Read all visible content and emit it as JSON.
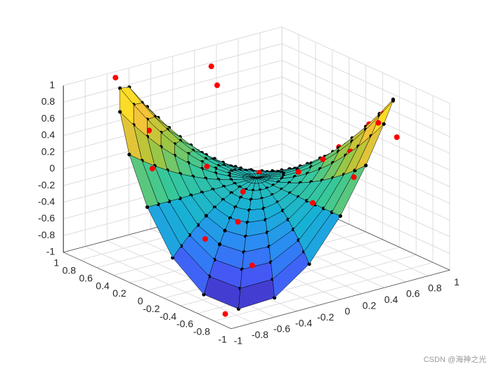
{
  "chart_data": {
    "type": "surface3d",
    "view": [
      -37.5,
      30
    ],
    "xlim": [
      -1,
      1
    ],
    "ylim": [
      -1,
      1
    ],
    "zlim": [
      -1,
      1
    ],
    "xticks": [
      -1,
      -0.8,
      -0.6,
      -0.4,
      -0.2,
      0,
      0.2,
      0.4,
      0.6,
      0.8,
      1
    ],
    "yticks": [
      -1,
      -0.8,
      -0.6,
      -0.4,
      -0.2,
      0,
      0.2,
      0.4,
      0.6,
      0.8,
      1
    ],
    "zticks": [
      -1,
      -0.8,
      -0.6,
      -0.4,
      -0.2,
      0,
      0.2,
      0.4,
      0.6,
      0.8,
      1
    ],
    "grid": true,
    "colormap": [
      "#3e26a8",
      "#4852f4",
      "#2d87f7",
      "#18b1d6",
      "#37c89a",
      "#abc639",
      "#fec338",
      "#f9fb15"
    ],
    "surface": {
      "edge_color": "#000000",
      "marker_color": "#000000",
      "r": [
        0,
        0.1,
        0.2,
        0.3,
        0.4,
        0.5,
        0.6,
        0.7,
        0.8,
        0.9,
        1
      ],
      "theta": [
        0,
        15,
        30,
        45,
        60,
        75,
        90,
        105,
        120,
        135,
        150,
        165,
        180,
        195,
        210,
        225,
        240,
        255,
        270,
        285,
        300,
        315,
        330,
        345
      ],
      "z": [
        [
          0,
          0,
          0,
          0,
          0,
          0,
          0,
          0,
          0,
          0,
          0,
          0,
          0,
          0,
          0,
          0,
          0,
          0,
          0,
          0,
          0,
          0,
          0,
          0
        ],
        [
          0,
          -0.005,
          -0.009,
          -0.01,
          -0.009,
          -0.005,
          0,
          0.005,
          0.009,
          0.01,
          0.009,
          0.005,
          0,
          -0.005,
          -0.009,
          -0.01,
          -0.009,
          -0.005,
          0,
          0.005,
          0.009,
          0.01,
          0.009,
          0.005
        ],
        [
          0,
          -0.02,
          -0.035,
          -0.04,
          -0.035,
          -0.02,
          0,
          0.02,
          0.035,
          0.04,
          0.035,
          0.02,
          0,
          -0.02,
          -0.035,
          -0.04,
          -0.035,
          -0.02,
          0,
          0.02,
          0.035,
          0.04,
          0.035,
          0.02
        ],
        [
          0,
          -0.045,
          -0.078,
          -0.09,
          -0.078,
          -0.045,
          0,
          0.045,
          0.078,
          0.09,
          0.078,
          0.045,
          0,
          -0.045,
          -0.078,
          -0.09,
          -0.078,
          -0.045,
          0,
          0.045,
          0.078,
          0.09,
          0.078,
          0.045
        ],
        [
          0,
          -0.08,
          -0.139,
          -0.16,
          -0.139,
          -0.08,
          0,
          0.08,
          0.139,
          0.16,
          0.139,
          0.08,
          0,
          -0.08,
          -0.139,
          -0.16,
          -0.139,
          -0.08,
          0,
          0.08,
          0.139,
          0.16,
          0.139,
          0.08
        ],
        [
          0,
          -0.125,
          -0.217,
          -0.25,
          -0.217,
          -0.125,
          0,
          0.125,
          0.217,
          0.25,
          0.217,
          0.125,
          0,
          -0.125,
          -0.217,
          -0.25,
          -0.217,
          -0.125,
          0,
          0.125,
          0.217,
          0.25,
          0.217,
          0.125
        ],
        [
          0,
          -0.18,
          -0.312,
          -0.36,
          -0.312,
          -0.18,
          0,
          0.18,
          0.312,
          0.36,
          0.312,
          0.18,
          0,
          -0.18,
          -0.312,
          -0.36,
          -0.312,
          -0.18,
          0,
          0.18,
          0.312,
          0.36,
          0.312,
          0.18
        ],
        [
          0,
          -0.245,
          -0.424,
          -0.49,
          -0.424,
          -0.245,
          0,
          0.245,
          0.424,
          0.49,
          0.424,
          0.245,
          0,
          -0.245,
          -0.424,
          -0.49,
          -0.424,
          -0.245,
          0,
          0.245,
          0.424,
          0.49,
          0.424,
          0.245
        ],
        [
          0,
          -0.32,
          -0.554,
          -0.64,
          -0.554,
          -0.32,
          0,
          0.32,
          0.554,
          0.64,
          0.554,
          0.32,
          0,
          -0.32,
          -0.554,
          -0.64,
          -0.554,
          -0.32,
          0,
          0.32,
          0.554,
          0.64,
          0.554,
          0.32
        ],
        [
          0,
          -0.405,
          -0.701,
          -0.81,
          -0.701,
          -0.405,
          0,
          0.405,
          0.701,
          0.81,
          0.701,
          0.405,
          0,
          -0.405,
          -0.701,
          -0.81,
          -0.701,
          -0.405,
          0,
          0.405,
          0.701,
          0.81,
          0.701,
          0.405
        ],
        [
          0,
          -0.5,
          -0.866,
          -1,
          -0.866,
          -0.5,
          0,
          0.5,
          0.866,
          1,
          0.866,
          0.5,
          0,
          -0.5,
          -0.866,
          -1,
          -0.866,
          -0.5,
          0,
          0.5,
          0.866,
          1,
          0.866,
          0.5
        ]
      ]
    },
    "series": [
      {
        "color": "#ff0000",
        "x": [
          -0.6,
          -0.4,
          -0.8,
          -0.7,
          -0.5,
          -0.3,
          -0.2,
          0.1,
          0.2,
          0.5,
          0.7,
          0.8,
          0.9,
          0.6,
          0.3,
          0.4,
          0.6,
          0.8,
          0.2,
          -0.1,
          0,
          0.5,
          -0.4,
          0.3,
          0.9,
          -0.9,
          0.1,
          -0.6,
          0.7,
          0.4
        ],
        "y": [
          0.5,
          0.7,
          0.2,
          -0.3,
          -0.6,
          0.2,
          -0.1,
          0.6,
          0.8,
          -0.8,
          -0.6,
          -0.3,
          -0.5,
          -0.2,
          -0.4,
          0.3,
          0.5,
          0.6,
          -0.9,
          -0.8,
          -0.5,
          0.1,
          -0.3,
          0.7,
          0.2,
          -0.8,
          0.1,
          0.9,
          0.9,
          -0.6
        ],
        "z": [
          0.55,
          0.5,
          0.3,
          -0.35,
          -0.6,
          0.15,
          -0.05,
          0.8,
          0.9,
          0.85,
          0.8,
          0.5,
          0.4,
          0.25,
          0.3,
          -0.25,
          -0.6,
          -0.55,
          0.35,
          0.1,
          0.3,
          -0.1,
          -0.25,
          -0.45,
          -0.35,
          -0.95,
          -0.02,
          1,
          -1,
          0.45
        ]
      }
    ]
  },
  "watermark": "CSDN @海神之光"
}
